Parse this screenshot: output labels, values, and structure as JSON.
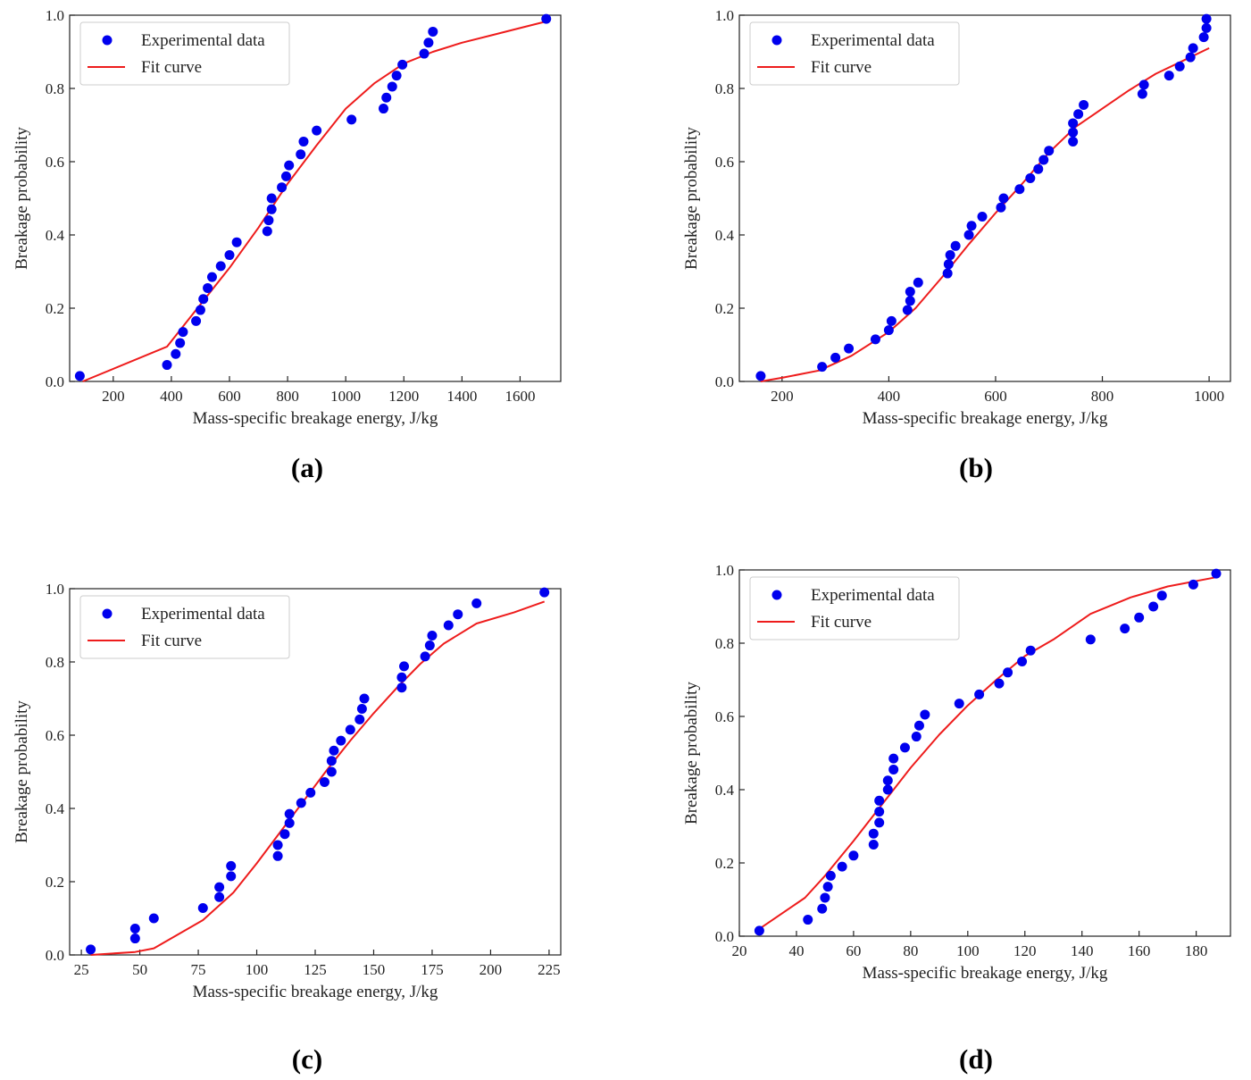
{
  "panel_letters": [
    "a",
    "b",
    "c",
    "d"
  ],
  "colors": {
    "scatter": "#0000ee",
    "fit": "#ee1c1c",
    "axis": "#222222"
  },
  "chart_data": [
    {
      "type": "scatter",
      "panel": "a",
      "xlabel": "Mass-specific breakage energy, J/kg",
      "ylabel": "Breakage probability",
      "xlim": [
        50,
        1740
      ],
      "ylim": [
        0,
        1.0
      ],
      "xticks": [
        200,
        400,
        600,
        800,
        1000,
        1200,
        1400,
        1600
      ],
      "yticks": [
        0.0,
        0.2,
        0.4,
        0.6,
        0.8,
        1.0
      ],
      "xtick_labels": [
        "200",
        "400",
        "600",
        "800",
        "1000",
        "1200",
        "1400",
        "1600"
      ],
      "ytick_labels": [
        "0.0",
        "0.2",
        "0.4",
        "0.6",
        "0.8",
        "1.0"
      ],
      "legend_position": "top-left",
      "series": [
        {
          "name": "Experimental data",
          "kind": "scatter",
          "points": [
            [
              85,
              0.015
            ],
            [
              385,
              0.045
            ],
            [
              415,
              0.075
            ],
            [
              430,
              0.105
            ],
            [
              440,
              0.135
            ],
            [
              485,
              0.165
            ],
            [
              500,
              0.195
            ],
            [
              510,
              0.225
            ],
            [
              525,
              0.255
            ],
            [
              540,
              0.285
            ],
            [
              570,
              0.315
            ],
            [
              600,
              0.345
            ],
            [
              625,
              0.38
            ],
            [
              730,
              0.41
            ],
            [
              735,
              0.44
            ],
            [
              745,
              0.47
            ],
            [
              745,
              0.5
            ],
            [
              780,
              0.53
            ],
            [
              795,
              0.56
            ],
            [
              805,
              0.59
            ],
            [
              845,
              0.62
            ],
            [
              855,
              0.655
            ],
            [
              900,
              0.685
            ],
            [
              1020,
              0.715
            ],
            [
              1130,
              0.745
            ],
            [
              1140,
              0.775
            ],
            [
              1160,
              0.805
            ],
            [
              1175,
              0.835
            ],
            [
              1195,
              0.865
            ],
            [
              1270,
              0.895
            ],
            [
              1285,
              0.925
            ],
            [
              1300,
              0.955
            ],
            [
              1690,
              0.99
            ]
          ]
        },
        {
          "name": "Fit curve",
          "kind": "line",
          "points": [
            [
              95,
              0.0
            ],
            [
              385,
              0.095
            ],
            [
              500,
              0.21
            ],
            [
              600,
              0.31
            ],
            [
              700,
              0.42
            ],
            [
              800,
              0.54
            ],
            [
              900,
              0.645
            ],
            [
              1000,
              0.745
            ],
            [
              1100,
              0.815
            ],
            [
              1200,
              0.868
            ],
            [
              1300,
              0.9
            ],
            [
              1400,
              0.925
            ],
            [
              1500,
              0.945
            ],
            [
              1600,
              0.965
            ],
            [
              1690,
              0.983
            ]
          ]
        }
      ]
    },
    {
      "type": "scatter",
      "panel": "b",
      "xlabel": "Mass-specific breakage energy, J/kg",
      "ylabel": "Breakage probability",
      "xlim": [
        120,
        1040
      ],
      "ylim": [
        0,
        1.0
      ],
      "xticks": [
        200,
        400,
        600,
        800,
        1000
      ],
      "yticks": [
        0.0,
        0.2,
        0.4,
        0.6,
        0.8,
        1.0
      ],
      "xtick_labels": [
        "200",
        "400",
        "600",
        "800",
        "1000"
      ],
      "ytick_labels": [
        "0.0",
        "0.2",
        "0.4",
        "0.6",
        "0.8",
        "1.0"
      ],
      "legend_position": "top-left",
      "series": [
        {
          "name": "Experimental data",
          "kind": "scatter",
          "points": [
            [
              160,
              0.015
            ],
            [
              275,
              0.04
            ],
            [
              300,
              0.065
            ],
            [
              325,
              0.09
            ],
            [
              375,
              0.115
            ],
            [
              400,
              0.14
            ],
            [
              405,
              0.165
            ],
            [
              435,
              0.195
            ],
            [
              440,
              0.22
            ],
            [
              440,
              0.245
            ],
            [
              455,
              0.27
            ],
            [
              510,
              0.295
            ],
            [
              512,
              0.32
            ],
            [
              515,
              0.345
            ],
            [
              525,
              0.37
            ],
            [
              550,
              0.4
            ],
            [
              555,
              0.425
            ],
            [
              575,
              0.45
            ],
            [
              610,
              0.475
            ],
            [
              615,
              0.5
            ],
            [
              645,
              0.525
            ],
            [
              665,
              0.555
            ],
            [
              680,
              0.58
            ],
            [
              690,
              0.605
            ],
            [
              700,
              0.63
            ],
            [
              745,
              0.655
            ],
            [
              745,
              0.68
            ],
            [
              745,
              0.705
            ],
            [
              755,
              0.73
            ],
            [
              765,
              0.755
            ],
            [
              875,
              0.785
            ],
            [
              878,
              0.81
            ],
            [
              925,
              0.835
            ],
            [
              945,
              0.86
            ],
            [
              965,
              0.885
            ],
            [
              970,
              0.91
            ],
            [
              990,
              0.94
            ],
            [
              995,
              0.965
            ],
            [
              995,
              0.99
            ]
          ]
        },
        {
          "name": "Fit curve",
          "kind": "line",
          "points": [
            [
              160,
              0.0
            ],
            [
              200,
              0.01
            ],
            [
              270,
              0.03
            ],
            [
              330,
              0.07
            ],
            [
              400,
              0.135
            ],
            [
              450,
              0.2
            ],
            [
              500,
              0.285
            ],
            [
              550,
              0.375
            ],
            [
              600,
              0.46
            ],
            [
              650,
              0.54
            ],
            [
              700,
              0.625
            ],
            [
              750,
              0.695
            ],
            [
              800,
              0.745
            ],
            [
              850,
              0.795
            ],
            [
              900,
              0.84
            ],
            [
              950,
              0.875
            ],
            [
              1000,
              0.91
            ]
          ]
        }
      ]
    },
    {
      "type": "scatter",
      "panel": "c",
      "xlabel": "Mass-specific breakage energy, J/kg",
      "ylabel": "Breakage probability",
      "xlim": [
        20,
        230
      ],
      "ylim": [
        0,
        1.0
      ],
      "xticks": [
        25,
        50,
        75,
        100,
        125,
        150,
        175,
        200,
        225
      ],
      "yticks": [
        0.0,
        0.2,
        0.4,
        0.6,
        0.8,
        1.0
      ],
      "xtick_labels": [
        "25",
        "50",
        "75",
        "100",
        "125",
        "150",
        "175",
        "200",
        "225"
      ],
      "ytick_labels": [
        "0.0",
        "0.2",
        "0.4",
        "0.6",
        "0.8",
        "1.0"
      ],
      "legend_position": "top-left",
      "series": [
        {
          "name": "Experimental data",
          "kind": "scatter",
          "points": [
            [
              29,
              0.015
            ],
            [
              48,
              0.045
            ],
            [
              48,
              0.072
            ],
            [
              56,
              0.1
            ],
            [
              77,
              0.128
            ],
            [
              84,
              0.158
            ],
            [
              84,
              0.185
            ],
            [
              89,
              0.215
            ],
            [
              89,
              0.243
            ],
            [
              109,
              0.27
            ],
            [
              109,
              0.3
            ],
            [
              112,
              0.33
            ],
            [
              114,
              0.36
            ],
            [
              114,
              0.385
            ],
            [
              119,
              0.415
            ],
            [
              123,
              0.443
            ],
            [
              129,
              0.472
            ],
            [
              132,
              0.5
            ],
            [
              132,
              0.53
            ],
            [
              133,
              0.558
            ],
            [
              136,
              0.585
            ],
            [
              140,
              0.615
            ],
            [
              144,
              0.643
            ],
            [
              145,
              0.672
            ],
            [
              146,
              0.7
            ],
            [
              162,
              0.73
            ],
            [
              162,
              0.758
            ],
            [
              163,
              0.788
            ],
            [
              172,
              0.815
            ],
            [
              174,
              0.845
            ],
            [
              175,
              0.872
            ],
            [
              182,
              0.9
            ],
            [
              186,
              0.93
            ],
            [
              194,
              0.96
            ],
            [
              223,
              0.99
            ]
          ]
        },
        {
          "name": "Fit curve",
          "kind": "line",
          "points": [
            [
              29,
              0.0
            ],
            [
              48,
              0.008
            ],
            [
              56,
              0.018
            ],
            [
              77,
              0.095
            ],
            [
              90,
              0.17
            ],
            [
              100,
              0.25
            ],
            [
              110,
              0.335
            ],
            [
              120,
              0.42
            ],
            [
              130,
              0.505
            ],
            [
              140,
              0.585
            ],
            [
              150,
              0.66
            ],
            [
              160,
              0.73
            ],
            [
              170,
              0.795
            ],
            [
              180,
              0.85
            ],
            [
              194,
              0.905
            ],
            [
              210,
              0.935
            ],
            [
              223,
              0.965
            ]
          ]
        }
      ]
    },
    {
      "type": "scatter",
      "panel": "d",
      "xlabel": "Mass-specific breakage energy, J/kg",
      "ylabel": "Breakage probability",
      "xlim": [
        20,
        192
      ],
      "ylim": [
        0,
        1.0
      ],
      "xticks": [
        20,
        40,
        60,
        80,
        100,
        120,
        140,
        160,
        180
      ],
      "yticks": [
        0.0,
        0.2,
        0.4,
        0.6,
        0.8,
        1.0
      ],
      "xtick_labels": [
        "20",
        "40",
        "60",
        "80",
        "100",
        "120",
        "140",
        "160",
        "180"
      ],
      "ytick_labels": [
        "0.0",
        "0.2",
        "0.4",
        "0.6",
        "0.8",
        "1.0"
      ],
      "legend_position": "top-left",
      "series": [
        {
          "name": "Experimental data",
          "kind": "scatter",
          "points": [
            [
              27,
              0.015
            ],
            [
              44,
              0.045
            ],
            [
              49,
              0.075
            ],
            [
              50,
              0.105
            ],
            [
              51,
              0.135
            ],
            [
              52,
              0.165
            ],
            [
              56,
              0.19
            ],
            [
              60,
              0.22
            ],
            [
              67,
              0.25
            ],
            [
              67,
              0.28
            ],
            [
              69,
              0.31
            ],
            [
              69,
              0.34
            ],
            [
              69,
              0.37
            ],
            [
              72,
              0.4
            ],
            [
              72,
              0.425
            ],
            [
              74,
              0.455
            ],
            [
              74,
              0.485
            ],
            [
              78,
              0.515
            ],
            [
              82,
              0.545
            ],
            [
              83,
              0.575
            ],
            [
              85,
              0.605
            ],
            [
              97,
              0.635
            ],
            [
              104,
              0.66
            ],
            [
              111,
              0.69
            ],
            [
              114,
              0.72
            ],
            [
              119,
              0.75
            ],
            [
              122,
              0.78
            ],
            [
              143,
              0.81
            ],
            [
              155,
              0.84
            ],
            [
              160,
              0.87
            ],
            [
              165,
              0.9
            ],
            [
              168,
              0.93
            ],
            [
              179,
              0.96
            ],
            [
              187,
              0.99
            ]
          ]
        },
        {
          "name": "Fit curve",
          "kind": "line",
          "points": [
            [
              27,
              0.02
            ],
            [
              43,
              0.105
            ],
            [
              50,
              0.165
            ],
            [
              60,
              0.26
            ],
            [
              70,
              0.36
            ],
            [
              80,
              0.46
            ],
            [
              90,
              0.55
            ],
            [
              100,
              0.63
            ],
            [
              110,
              0.7
            ],
            [
              120,
              0.765
            ],
            [
              130,
              0.81
            ],
            [
              143,
              0.88
            ],
            [
              157,
              0.925
            ],
            [
              170,
              0.955
            ],
            [
              187,
              0.98
            ]
          ]
        }
      ]
    }
  ]
}
